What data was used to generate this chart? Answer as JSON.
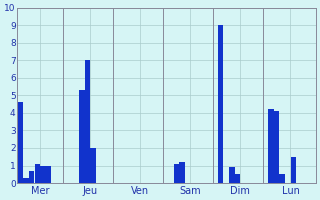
{
  "days": [
    "Mer",
    "Jeu",
    "Ven",
    "Sam",
    "Dim",
    "Lun"
  ],
  "bars_per_day": [
    [
      4.6,
      0.3,
      0.7,
      1.1,
      1.0,
      1.0,
      0.0,
      0.0
    ],
    [
      0.0,
      0.0,
      5.3,
      7.0,
      2.0,
      0.0,
      0.0,
      0.0
    ],
    [
      0.0,
      0.0,
      0.0,
      0.0,
      0.0,
      0.0,
      0.0,
      0.0
    ],
    [
      0.0,
      1.1,
      1.2,
      0.0,
      0.0,
      0.0,
      0.0,
      0.0
    ],
    [
      9.0,
      0.0,
      0.9,
      0.5,
      0.0,
      0.0,
      0.0,
      0.0
    ],
    [
      4.2,
      4.1,
      0.5,
      0.0,
      1.5,
      0.0,
      0.0,
      0.0
    ]
  ],
  "ylim": [
    0,
    10
  ],
  "yticks": [
    0,
    1,
    2,
    3,
    4,
    5,
    6,
    7,
    8,
    9,
    10
  ],
  "bar_color": "#1133cc",
  "background_color": "#d6f5f5",
  "grid_color": "#aacccc",
  "text_color": "#2233aa",
  "sep_color": "#888899"
}
